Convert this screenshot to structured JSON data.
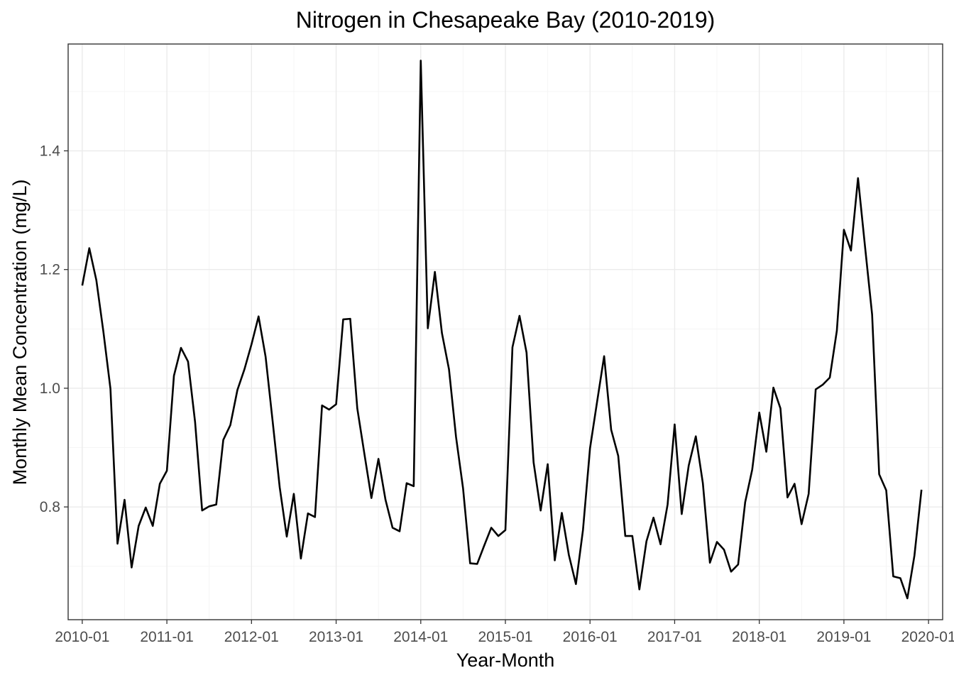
{
  "chart_data": {
    "type": "line",
    "title": "Nitrogen in Chesapeake Bay (2010-2019)",
    "xlabel": "Year-Month",
    "ylabel": "Monthly Mean Concentration (mg/L)",
    "x_tick_labels": [
      "2010-01",
      "2011-01",
      "2012-01",
      "2013-01",
      "2014-01",
      "2015-01",
      "2016-01",
      "2017-01",
      "2018-01",
      "2019-01",
      "2020-01"
    ],
    "y_tick_labels": [
      "0.8",
      "1.0",
      "1.2",
      "1.4"
    ],
    "y_ticks": [
      0.8,
      1.0,
      1.2,
      1.4
    ],
    "xlim": [
      "2009-11",
      "2020-03"
    ],
    "ylim": [
      0.61,
      1.58
    ],
    "grid": true,
    "x_minor_grid": true,
    "y_minor_grid": true,
    "colors": {
      "line": "#000000",
      "grid_major": "#ebebeb",
      "grid_minor": "#f5f5f5",
      "panel_border": "#333333",
      "background": "#ffffff"
    },
    "series": [
      {
        "x": [
          "2010-01",
          "2010-02",
          "2010-03",
          "2010-04",
          "2010-05",
          "2010-06",
          "2010-07",
          "2010-08",
          "2010-09",
          "2010-10",
          "2010-11",
          "2010-12",
          "2011-01",
          "2011-02",
          "2011-03",
          "2011-04",
          "2011-05",
          "2011-06",
          "2011-07",
          "2011-08",
          "2011-09",
          "2011-10",
          "2011-11",
          "2011-12",
          "2012-01",
          "2012-02",
          "2012-03",
          "2012-04",
          "2012-05",
          "2012-06",
          "2012-07",
          "2012-08",
          "2012-09",
          "2012-10",
          "2012-11",
          "2012-12",
          "2013-01",
          "2013-02",
          "2013-03",
          "2013-04",
          "2013-05",
          "2013-06",
          "2013-07",
          "2013-08",
          "2013-09",
          "2013-10",
          "2013-11",
          "2013-12",
          "2014-01",
          "2014-02",
          "2014-03",
          "2014-04",
          "2014-05",
          "2014-06",
          "2014-07",
          "2014-08",
          "2014-09",
          "2014-10",
          "2014-11",
          "2014-12",
          "2015-01",
          "2015-02",
          "2015-03",
          "2015-04",
          "2015-05",
          "2015-06",
          "2015-07",
          "2015-08",
          "2015-09",
          "2015-10",
          "2015-11",
          "2015-12",
          "2016-01",
          "2016-02",
          "2016-03",
          "2016-04",
          "2016-05",
          "2016-06",
          "2016-07",
          "2016-08",
          "2016-09",
          "2016-10",
          "2016-11",
          "2016-12",
          "2017-01",
          "2017-02",
          "2017-03",
          "2017-04",
          "2017-05",
          "2017-06",
          "2017-07",
          "2017-08",
          "2017-09",
          "2017-10",
          "2017-11",
          "2017-12",
          "2018-01",
          "2018-02",
          "2018-03",
          "2018-04",
          "2018-05",
          "2018-06",
          "2018-07",
          "2018-08",
          "2018-09",
          "2018-10",
          "2018-11",
          "2018-12",
          "2019-01",
          "2019-02",
          "2019-03",
          "2019-04",
          "2019-05",
          "2019-06",
          "2019-07",
          "2019-08",
          "2019-09",
          "2019-10",
          "2019-11",
          "2019-12"
        ],
        "values": [
          1.173,
          1.236,
          1.182,
          1.095,
          0.999,
          0.738,
          0.812,
          0.698,
          0.768,
          0.799,
          0.768,
          0.839,
          0.861,
          1.021,
          1.068,
          1.045,
          0.943,
          0.794,
          0.801,
          0.804,
          0.913,
          0.938,
          0.997,
          1.032,
          1.074,
          1.121,
          1.053,
          0.944,
          0.833,
          0.75,
          0.822,
          0.713,
          0.789,
          0.783,
          0.971,
          0.964,
          0.973,
          1.116,
          1.117,
          0.966,
          0.89,
          0.815,
          0.881,
          0.812,
          0.765,
          0.759,
          0.84,
          0.835,
          1.552,
          1.101,
          1.196,
          1.093,
          1.032,
          0.918,
          0.831,
          0.705,
          0.704,
          0.735,
          0.765,
          0.751,
          0.761,
          1.069,
          1.122,
          1.06,
          0.875,
          0.794,
          0.872,
          0.71,
          0.79,
          0.719,
          0.67,
          0.761,
          0.899,
          0.977,
          1.054,
          0.93,
          0.886,
          0.751,
          0.751,
          0.661,
          0.742,
          0.782,
          0.737,
          0.804,
          0.939,
          0.788,
          0.87,
          0.919,
          0.84,
          0.706,
          0.741,
          0.728,
          0.691,
          0.703,
          0.808,
          0.863,
          0.959,
          0.893,
          1.001,
          0.966,
          0.816,
          0.839,
          0.771,
          0.822,
          0.998,
          1.006,
          1.018,
          1.097,
          1.267,
          1.232,
          1.354,
          1.238,
          1.124,
          0.855,
          0.828,
          0.683,
          0.68,
          0.646,
          0.718,
          0.829
        ]
      }
    ]
  }
}
